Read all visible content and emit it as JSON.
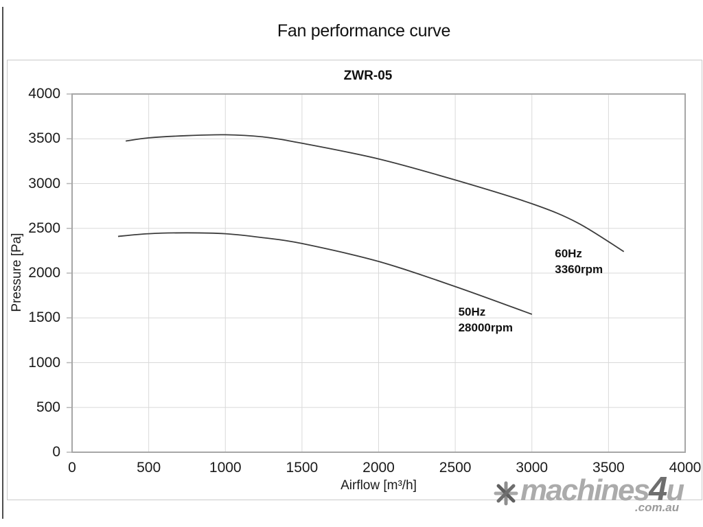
{
  "page": {
    "title": "Fan performance curve"
  },
  "watermark": {
    "brand_prefix": "machines",
    "brand_accent": "4",
    "brand_suffix": "u",
    "domain": ".com.au"
  },
  "colors": {
    "curve": "#3c3c3c",
    "gridline": "#d9d9d9",
    "plot_border": "#a6a6a6",
    "tick_mark": "#b5b5b5",
    "text": "#1a1a1a"
  },
  "chart_data": {
    "type": "line",
    "title": "ZWR-05",
    "xlabel": "Airflow [m³/h]",
    "ylabel": "Pressure [Pa]",
    "xlim": [
      0,
      4000
    ],
    "ylim": [
      0,
      4000
    ],
    "xticks": [
      0,
      500,
      1000,
      1500,
      2000,
      2500,
      3000,
      3500,
      4000
    ],
    "yticks": [
      0,
      500,
      1000,
      1500,
      2000,
      2500,
      3000,
      3500,
      4000
    ],
    "grid": true,
    "legend_position": "none",
    "series": [
      {
        "name": "60Hz 3360rpm",
        "points": [
          [
            350,
            3475
          ],
          [
            500,
            3510
          ],
          [
            750,
            3535
          ],
          [
            1000,
            3545
          ],
          [
            1250,
            3520
          ],
          [
            1500,
            3450
          ],
          [
            2000,
            3275
          ],
          [
            2500,
            3040
          ],
          [
            3000,
            2775
          ],
          [
            3300,
            2560
          ],
          [
            3600,
            2240
          ]
        ]
      },
      {
        "name": "50Hz 28000rpm",
        "points": [
          [
            300,
            2410
          ],
          [
            500,
            2440
          ],
          [
            750,
            2450
          ],
          [
            1000,
            2440
          ],
          [
            1250,
            2395
          ],
          [
            1500,
            2330
          ],
          [
            2000,
            2130
          ],
          [
            2500,
            1850
          ],
          [
            3000,
            1540
          ]
        ]
      }
    ],
    "annotations": [
      {
        "lines": [
          "60Hz",
          "3360rpm"
        ],
        "x": 3150,
        "y": 2310
      },
      {
        "lines": [
          "50Hz",
          "28000rpm"
        ],
        "x": 2520,
        "y": 1655
      }
    ]
  }
}
